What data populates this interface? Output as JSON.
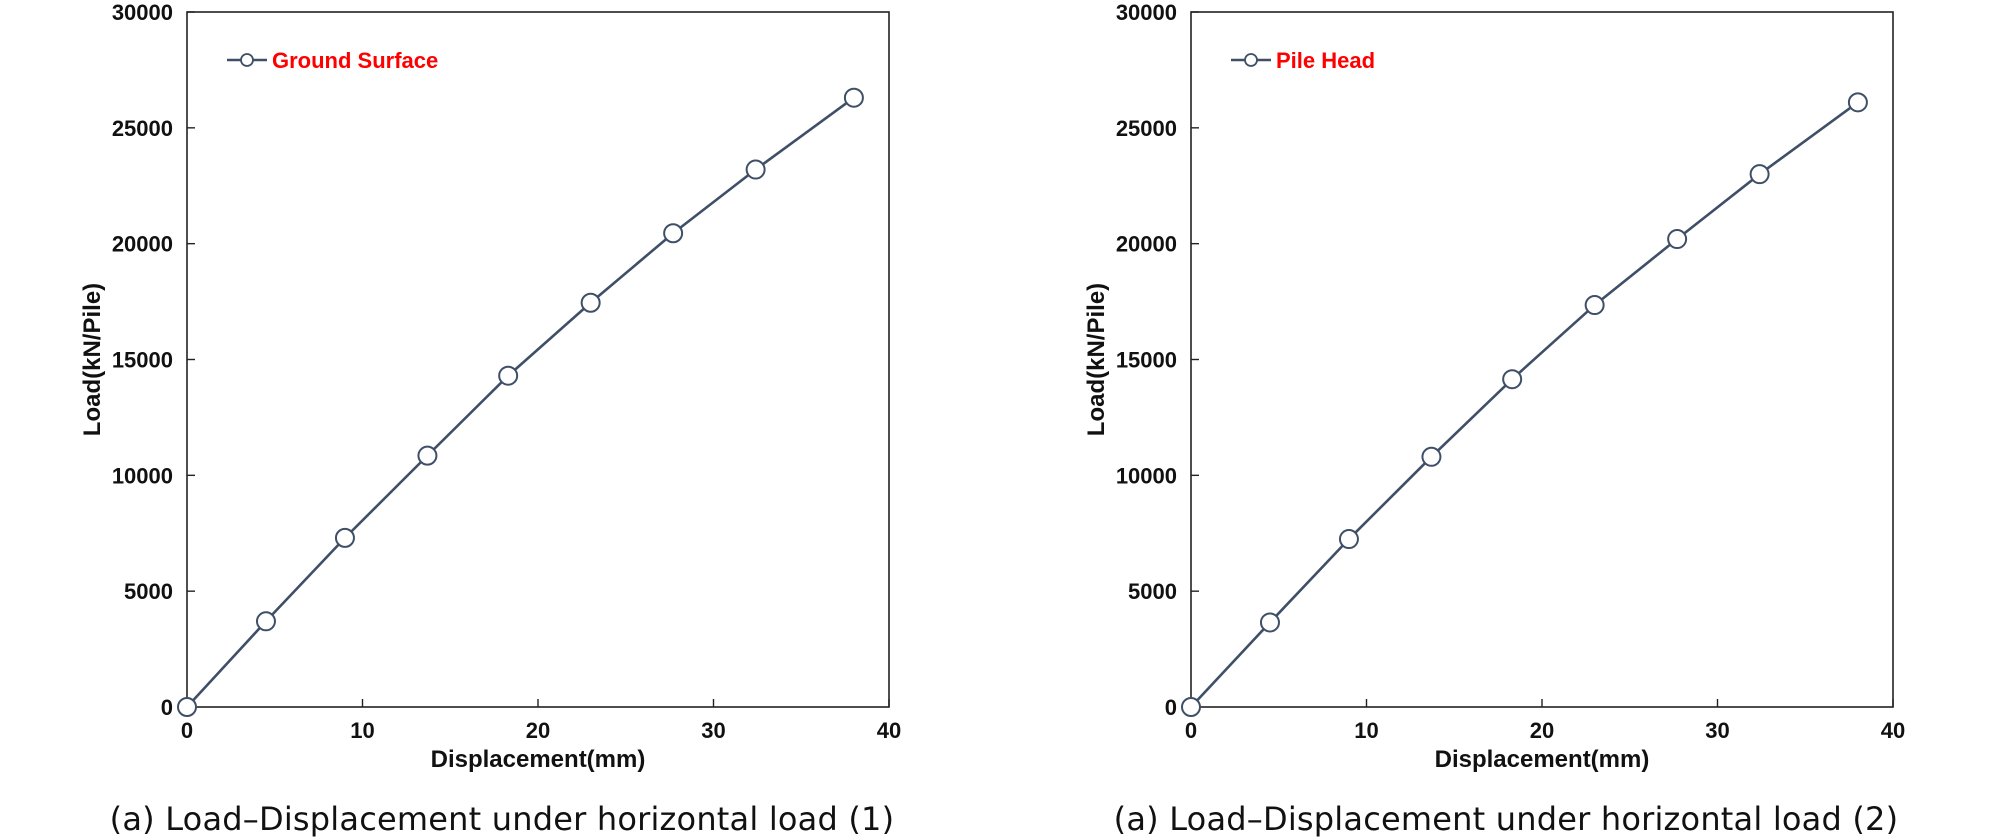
{
  "colors": {
    "line": "#3f4f67",
    "marker_fill": "#ffffff",
    "axis": "#222222",
    "legend_text": "#ff0000"
  },
  "chart_data": [
    {
      "type": "line",
      "xlabel": "Displacement(mm)",
      "ylabel": "Load(kN/Pile)",
      "xlim": [
        0,
        40
      ],
      "ylim": [
        0,
        30000
      ],
      "xticks": [
        "0",
        "10",
        "20",
        "30",
        "40"
      ],
      "yticks": [
        "0",
        "5000",
        "10000",
        "15000",
        "20000",
        "25000",
        "30000"
      ],
      "grid": false,
      "legend_position": "top-left",
      "series": [
        {
          "name": "Ground Surface",
          "marker": "open-circle",
          "x": [
            0,
            4.5,
            9.0,
            13.7,
            18.3,
            23.0,
            27.7,
            32.4,
            38.0
          ],
          "y": [
            0,
            3700,
            7300,
            10850,
            14300,
            17450,
            20450,
            23200,
            26300
          ]
        }
      ],
      "caption": "(a) Load–Displacement under horizontal load (1)"
    },
    {
      "type": "line",
      "xlabel": "Displacement(mm)",
      "ylabel": "Load(kN/Pile)",
      "xlim": [
        0,
        40
      ],
      "ylim": [
        0,
        30000
      ],
      "xticks": [
        "0",
        "10",
        "20",
        "30",
        "40"
      ],
      "yticks": [
        "0",
        "5000",
        "10000",
        "15000",
        "20000",
        "25000",
        "30000"
      ],
      "grid": false,
      "legend_position": "top-left",
      "series": [
        {
          "name": "Pile Head",
          "marker": "open-circle",
          "x": [
            0,
            4.5,
            9.0,
            13.7,
            18.3,
            23.0,
            27.7,
            32.4,
            38.0
          ],
          "y": [
            0,
            3650,
            7250,
            10800,
            14150,
            17350,
            20200,
            23000,
            26100
          ]
        }
      ],
      "caption": "(a) Load–Displacement under horizontal load (2)"
    }
  ]
}
